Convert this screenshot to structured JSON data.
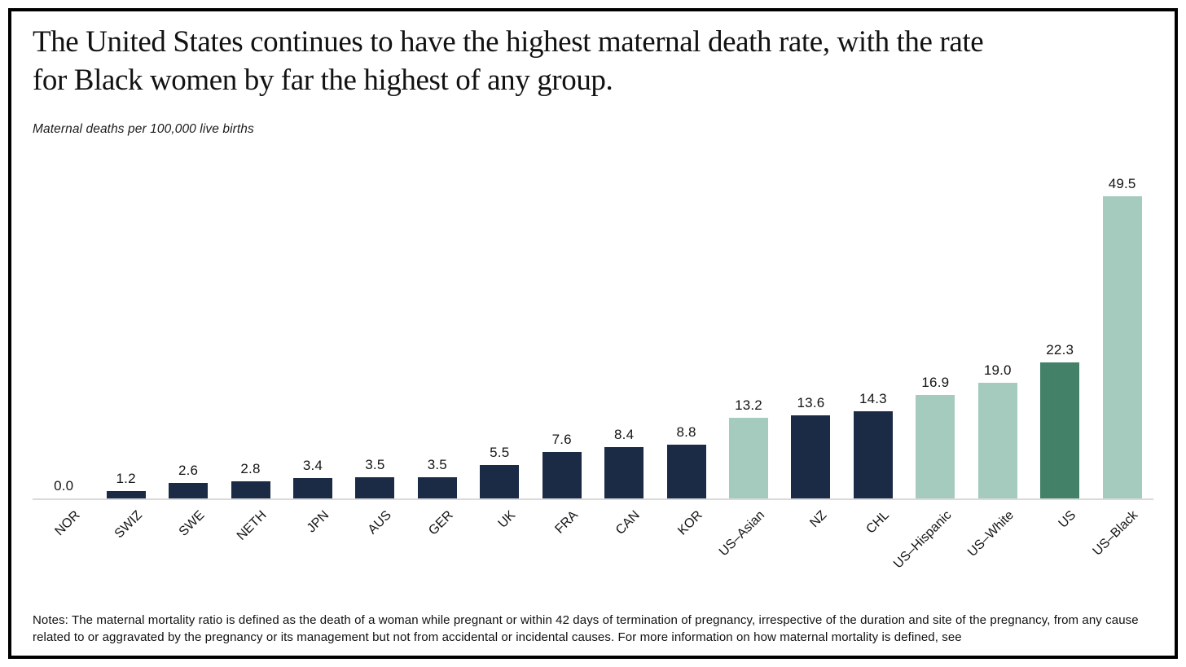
{
  "title": "The United States continues to have the highest maternal death rate, with the rate\nfor Black women by far the highest of any group.",
  "subtitle": "Maternal deaths per 100,000 live births",
  "notes": "Notes: The maternal mortality ratio is defined as the death of a woman while pregnant or within 42 days of termination of pregnancy, irrespective of the duration and site of the pregnancy, from any cause related to or aggravated by the pregnancy or its management but not from accidental or incidental causes. For more information on how maternal mortality is defined, see",
  "colors": {
    "country_bar": "#1b2b45",
    "us_subgroup_bar": "#a5cabe",
    "us_total_bar": "#438169",
    "axis_line": "#dadada",
    "frame_border": "#000000",
    "text": "#111111"
  },
  "chart_data": {
    "type": "bar",
    "title": "The United States continues to have the highest maternal death rate, with the rate for Black women by far the highest of any group.",
    "ylabel": "Maternal deaths per 100,000 live births",
    "xlabel": "",
    "ylim": [
      0,
      52
    ],
    "grid": false,
    "legend": "none",
    "value_label_decimals": 1,
    "categories": [
      "NOR",
      "SWIZ",
      "SWE",
      "NETH",
      "JPN",
      "AUS",
      "GER",
      "UK",
      "FRA",
      "CAN",
      "KOR",
      "US–Asian",
      "NZ",
      "CHL",
      "US–Hispanic",
      "US–White",
      "US",
      "US–Black"
    ],
    "values": [
      0.0,
      1.2,
      2.6,
      2.8,
      3.4,
      3.5,
      3.5,
      5.5,
      7.6,
      8.4,
      8.8,
      13.2,
      13.6,
      14.3,
      16.9,
      19.0,
      22.3,
      49.5
    ],
    "groups": [
      "country",
      "country",
      "country",
      "country",
      "country",
      "country",
      "country",
      "country",
      "country",
      "country",
      "country",
      "us_subgroup",
      "country",
      "country",
      "us_subgroup",
      "us_subgroup",
      "us_total",
      "us_subgroup"
    ]
  }
}
